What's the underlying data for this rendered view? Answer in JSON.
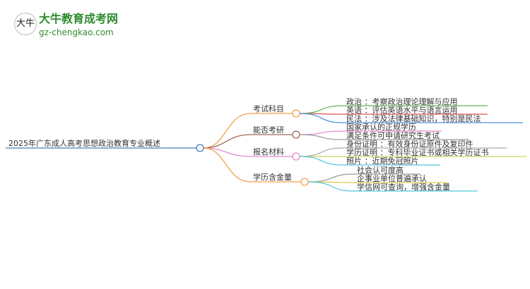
{
  "logo": {
    "title": "大牛教育成考网",
    "url": "gz-chengkao.com",
    "mark": "大牛"
  },
  "root": "2025年广东成人高考思想政治教育专业概述",
  "branches": [
    {
      "label": "考试科目",
      "color": "#f5a04a",
      "leaves": [
        {
          "text": "政治 ：考察政治理论理解与应用",
          "color": "#5cb85c"
        },
        {
          "text": "英语 ：评估英语水平与语言运用",
          "color": "#d9534f"
        },
        {
          "text": "民法 ：涉及法律基础知识，特别是民法",
          "color": "#4a90d9"
        }
      ]
    },
    {
      "label": "能否考研",
      "color": "#9b6a5a",
      "leaves": [
        {
          "text": "国家承认的正规学历",
          "color": "#e58ad0"
        },
        {
          "text": "满足条件可申请研究生考试",
          "color": "#999999"
        }
      ]
    },
    {
      "label": "报名材料",
      "color": "#e58ad0",
      "leaves": [
        {
          "text": "身份证明 ：有效身份证原件及复印件",
          "color": "#aaaaaa"
        },
        {
          "text": "学历证明 ：专科毕业证书或相关学历证书",
          "color": "#c8d45a"
        },
        {
          "text": "照片 ：近期免冠照片",
          "color": "#4fc6d9"
        }
      ]
    },
    {
      "label": "学历含金量",
      "color": "#f5a04a",
      "leaves": [
        {
          "text": "社会认可度高",
          "color": "#999999"
        },
        {
          "text": "企事业单位普遍承认",
          "color": "#e0c94a"
        },
        {
          "text": "学信网可查询，增强含金量",
          "color": "#4fc6d9"
        }
      ]
    }
  ]
}
